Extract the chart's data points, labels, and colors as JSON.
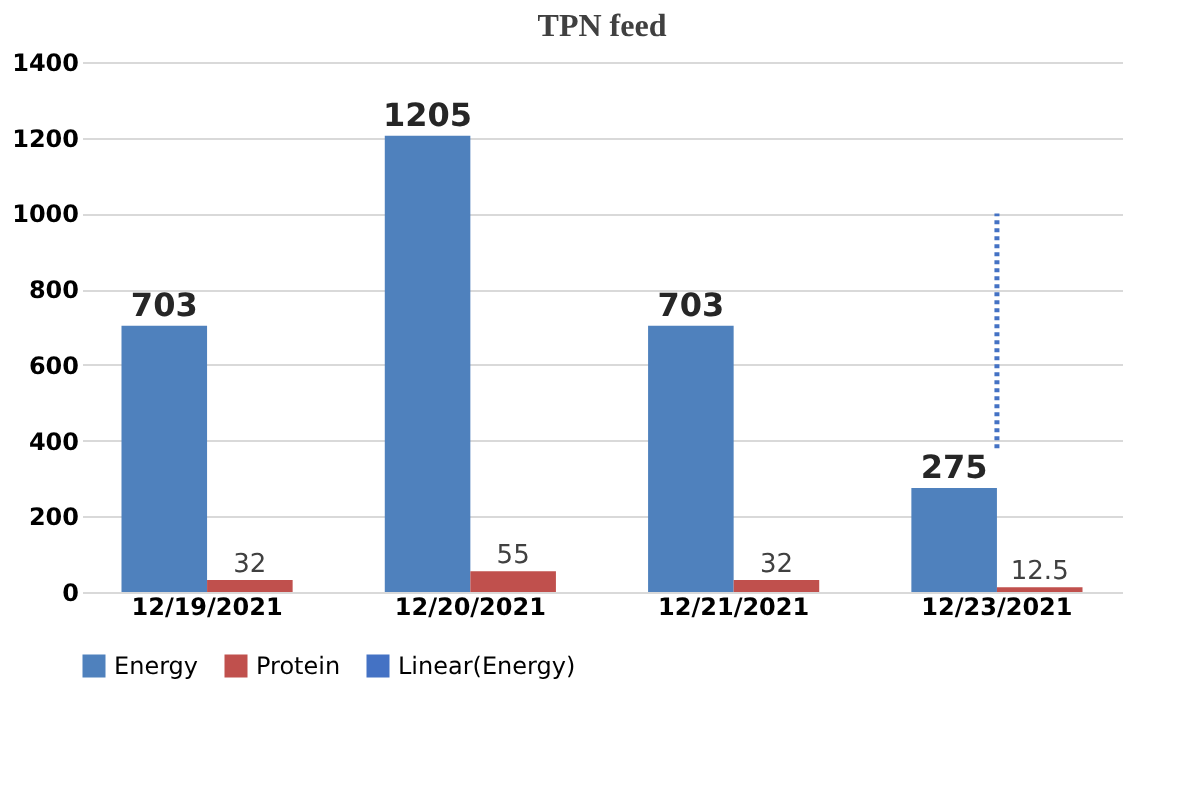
{
  "chart_data": {
    "type": "bar",
    "title": "TPN feed",
    "categories": [
      "12/19/2021",
      "12/20/2021",
      "12/21/2021",
      "12/23/2021"
    ],
    "series": [
      {
        "name": "Energy",
        "color": "#4f81bd",
        "values": [
          703,
          1205,
          703,
          275
        ],
        "value_labels": [
          "703",
          "1205",
          "703",
          "275"
        ]
      },
      {
        "name": "Protein",
        "color": "#c0504d",
        "values": [
          32,
          55,
          32,
          12.5
        ],
        "value_labels": [
          "32",
          "55",
          "32",
          "12.5"
        ]
      },
      {
        "name": "Linear(Energy)",
        "type": "line",
        "color": "#4472c4",
        "line_style": "dotted",
        "x": [
          "12/23/2021",
          "12/23/2021"
        ],
        "values": [
          380,
          1000
        ]
      }
    ],
    "ylim": [
      0,
      1400
    ],
    "yticks": [
      0,
      200,
      400,
      600,
      800,
      1000,
      1200,
      1400
    ],
    "grid": "y",
    "legend": "bottom"
  }
}
